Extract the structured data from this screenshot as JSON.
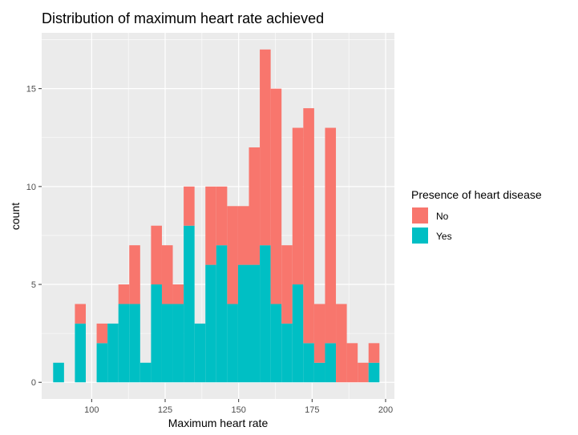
{
  "chart_data": {
    "type": "bar",
    "subtype": "stacked-histogram",
    "title": "Distribution of maximum heart rate achieved",
    "xlabel": "Maximum heart rate",
    "ylabel": "count",
    "xlim": [
      83,
      203
    ],
    "ylim": [
      -0.85,
      17.85
    ],
    "x_ticks": [
      100,
      125,
      150,
      175,
      200
    ],
    "y_ticks": [
      0,
      5,
      10,
      15
    ],
    "x_tick_labels": [
      "100",
      "125",
      "150",
      "175",
      "200"
    ],
    "y_tick_labels": [
      "0",
      "5",
      "10",
      "15"
    ],
    "grid": true,
    "legend_position": "right",
    "legend_title": "Presence of heart disease",
    "bin_width": 3.7,
    "bin_starts": [
      86.9,
      90.6,
      94.3,
      98.0,
      101.7,
      105.4,
      109.1,
      112.8,
      116.5,
      120.2,
      123.9,
      127.6,
      131.3,
      135.0,
      138.7,
      142.4,
      146.1,
      149.8,
      153.5,
      157.2,
      160.9,
      164.6,
      168.3,
      172.0,
      175.7,
      179.4,
      183.1,
      186.8,
      190.5,
      194.2
    ],
    "series": [
      {
        "name": "Yes",
        "color": "#00BFC4",
        "values": [
          1,
          0,
          3,
          0,
          2,
          3,
          4,
          4,
          1,
          5,
          4,
          4,
          8,
          3,
          6,
          7,
          4,
          6,
          6,
          7,
          4,
          3,
          5,
          2,
          1,
          2,
          0,
          0,
          0,
          1
        ]
      },
      {
        "name": "No",
        "color": "#F8766D",
        "values": [
          0,
          0,
          1,
          0,
          1,
          0,
          1,
          3,
          0,
          3,
          3,
          1,
          2,
          0,
          4,
          3,
          5,
          3,
          6,
          10,
          11,
          4,
          8,
          12,
          3,
          11,
          4,
          2,
          1,
          1
        ]
      }
    ]
  },
  "legend": {
    "title": "Presence of heart disease",
    "items": [
      {
        "label": "No",
        "color": "#F8766D"
      },
      {
        "label": "Yes",
        "color": "#00BFC4"
      }
    ]
  },
  "panel_background": "#EBEBEB"
}
